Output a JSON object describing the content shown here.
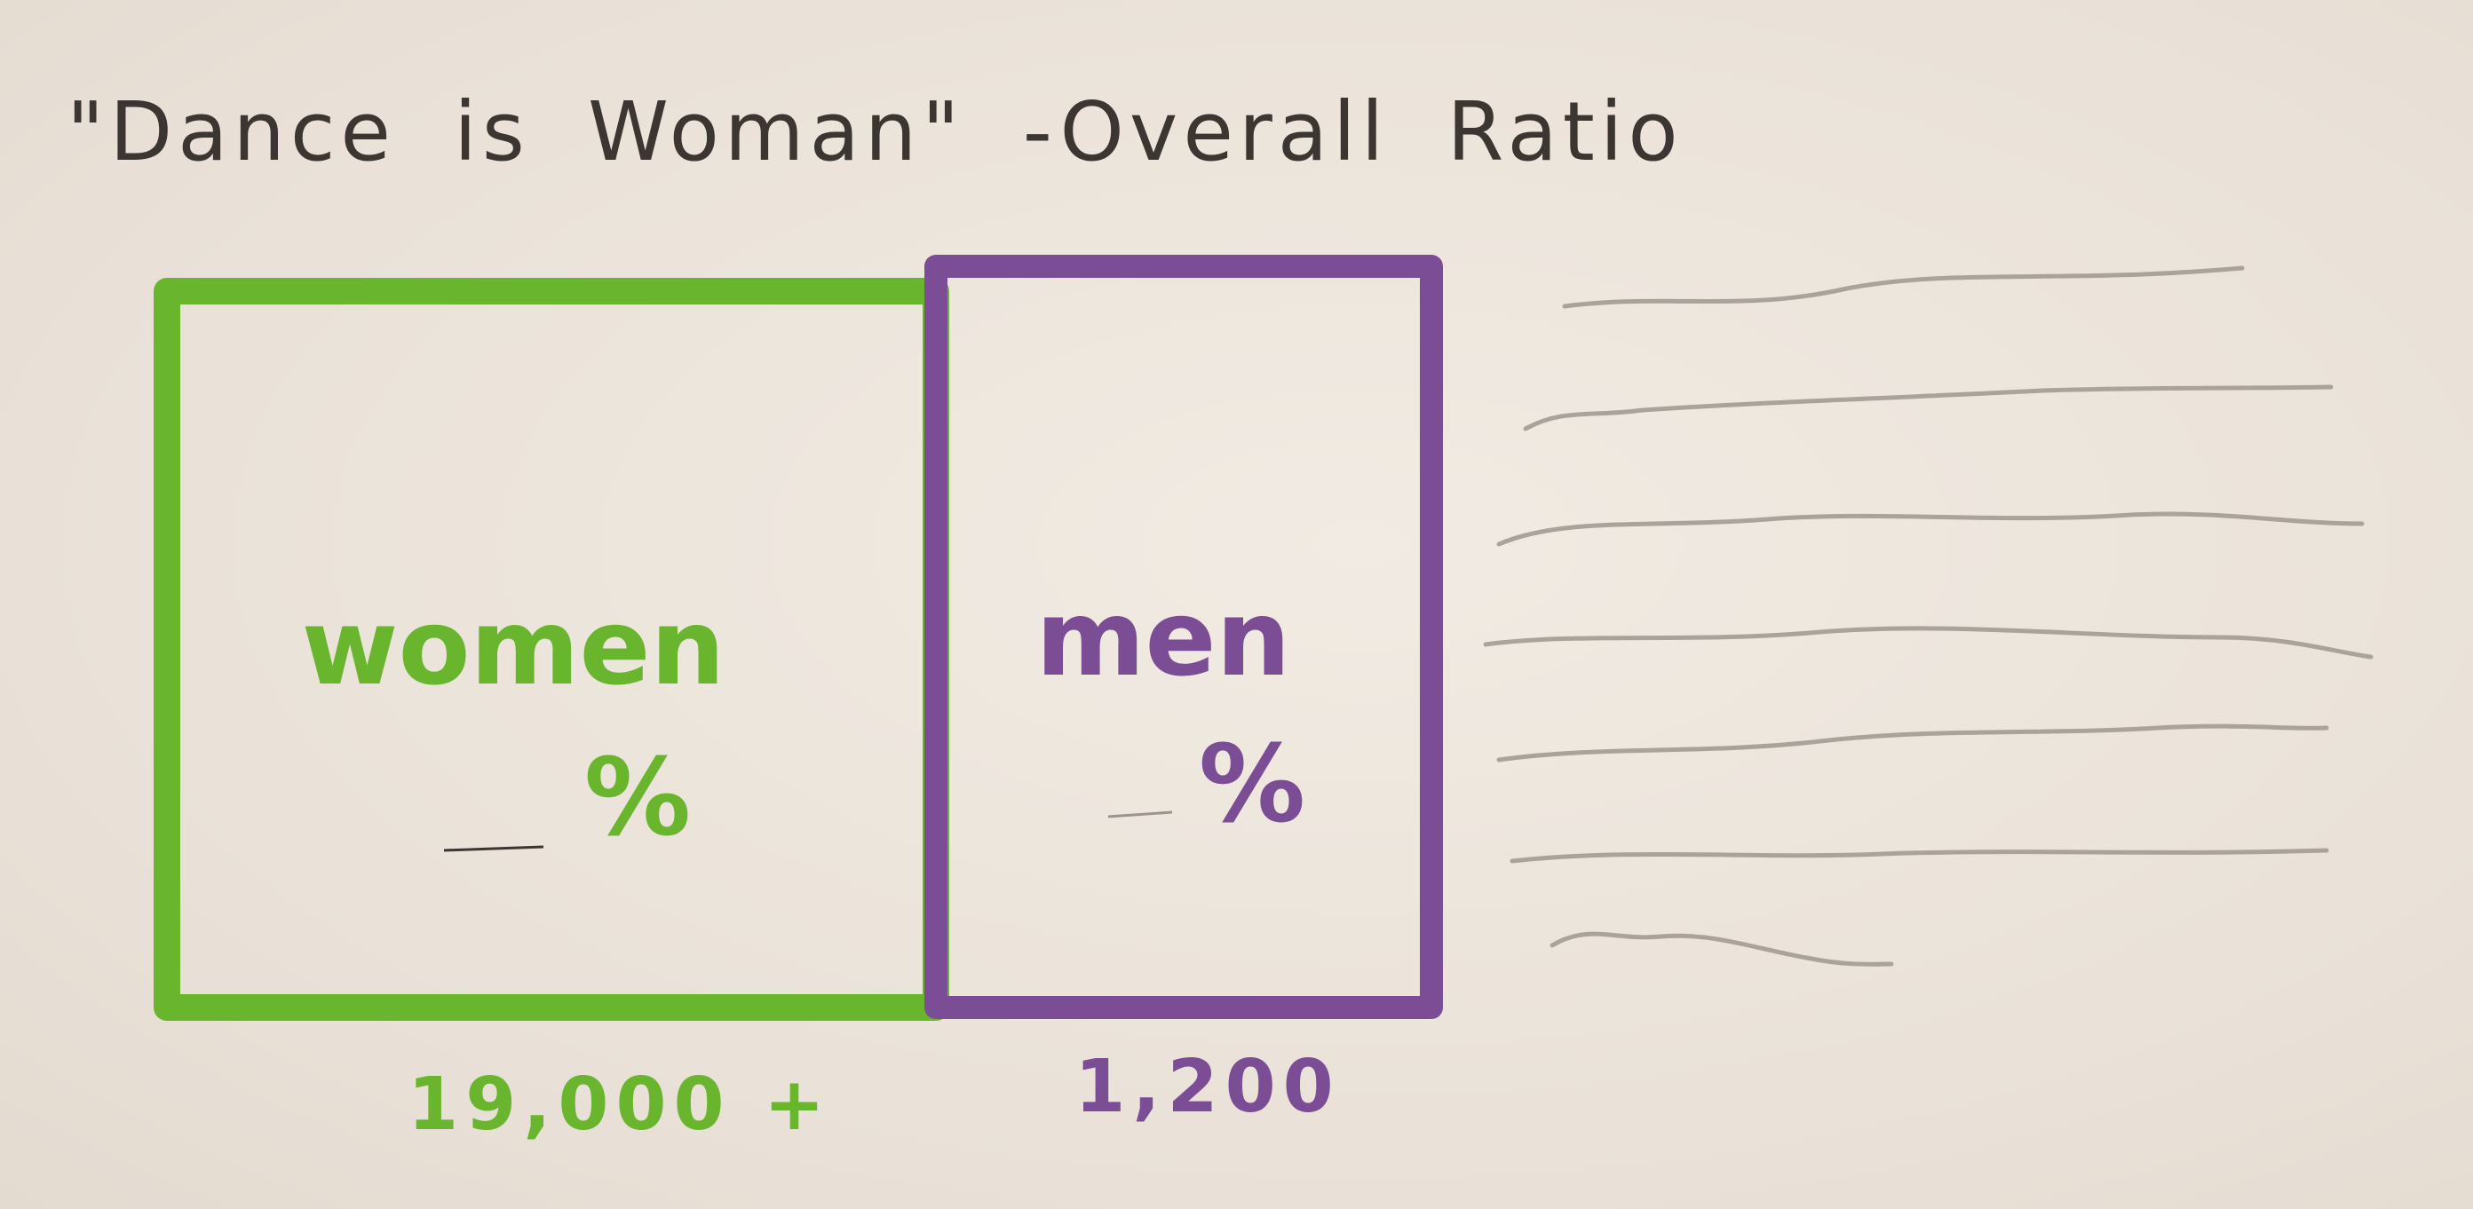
{
  "chart_data": {
    "type": "bar",
    "title": "\"Dance is Woman\" -Overall Ratio",
    "xlabel": "",
    "ylabel": "",
    "categories": [
      "women",
      "men"
    ],
    "values": [
      19000,
      1200
    ],
    "value_labels": [
      "19,000 +",
      "1,200"
    ],
    "percent_labels": [
      "%",
      "%"
    ],
    "colors": [
      "#6ab52e",
      "#7b4d94"
    ],
    "legend_placeholder_lines": 7
  }
}
